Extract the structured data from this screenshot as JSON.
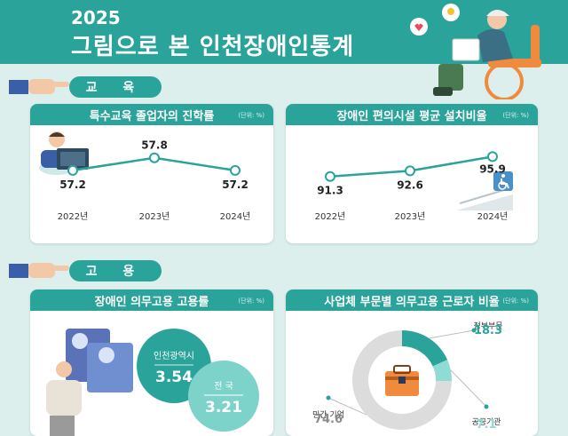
{
  "header": {
    "year": "2025",
    "title": "그림으로 본 인천장애인통계"
  },
  "sections": {
    "education": "교 육",
    "employment": "고 용"
  },
  "cards": {
    "graduate": {
      "title": "특수교육 졸업자의 진학률",
      "unit": "(단위: %)"
    },
    "facility": {
      "title": "장애인 편의시설 평균 설치비율",
      "unit": "(단위: %)"
    },
    "employment_rate": {
      "title": "장애인 의무고용 고용률",
      "unit": "(단위: %)"
    },
    "sector": {
      "title": "사업체 부문별 의무고용 근로자 비율",
      "unit": "(단위: %)"
    }
  },
  "chart_data": [
    {
      "type": "line",
      "title": "특수교육 졸업자의 진학률",
      "categories": [
        "2022년",
        "2023년",
        "2024년"
      ],
      "values": [
        57.2,
        57.8,
        57.2
      ],
      "labels": [
        "57.2",
        "57.8",
        "57.2"
      ]
    },
    {
      "type": "line",
      "title": "장애인 편의시설 평균 설치비율",
      "categories": [
        "2022년",
        "2023년",
        "2024년"
      ],
      "values": [
        91.3,
        92.6,
        95.9
      ],
      "labels": [
        "91.3",
        "92.6",
        "95.9"
      ]
    },
    {
      "type": "bar",
      "title": "장애인 의무고용 고용률",
      "categories": [
        "인천광역시",
        "전 국"
      ],
      "values": [
        3.54,
        3.21
      ],
      "labels": [
        "3.54",
        "3.21"
      ]
    },
    {
      "type": "pie",
      "title": "사업체 부문별 의무고용 근로자 비율",
      "categories": [
        "정부부문",
        "공공기관",
        "민간 기업"
      ],
      "values": [
        18.3,
        7.1,
        74.6
      ],
      "labels": [
        "18.3",
        "7.1",
        "74.6"
      ],
      "colors": [
        "#2aa39a",
        "#8fdcd4",
        "#dcdcdc"
      ]
    }
  ]
}
